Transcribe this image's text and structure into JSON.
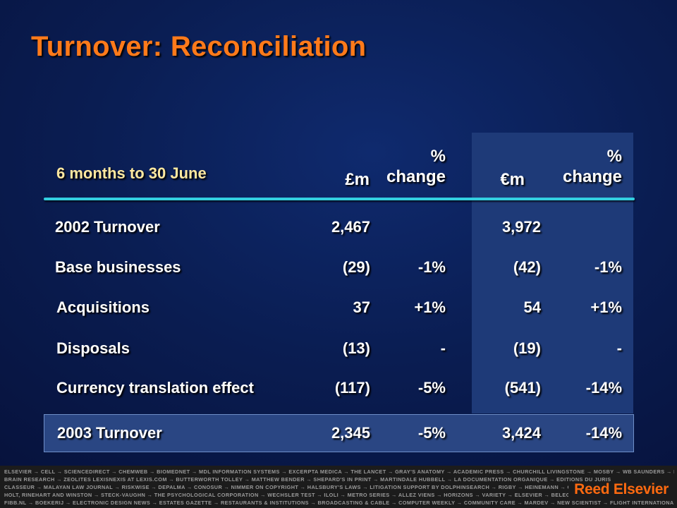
{
  "title": "Turnover: Reconciliation",
  "table": {
    "period_label": "6 months to 30 June",
    "columns": [
      {
        "unit": "£m"
      },
      {
        "pct": "%",
        "change": "change"
      },
      {
        "unit": "€m"
      },
      {
        "pct": "%",
        "change": "change"
      }
    ],
    "rows": [
      {
        "label": "2002 Turnover",
        "gbp": "2,467",
        "gbp_change": "",
        "eur": "3,972",
        "eur_change": ""
      },
      {
        "label": "Base businesses",
        "gbp": "(29)",
        "gbp_change": "-1%",
        "eur": "(42)",
        "eur_change": "-1%"
      },
      {
        "label": "Acquisitions",
        "gbp": "37",
        "gbp_change": "+1%",
        "eur": "54",
        "eur_change": "+1%"
      },
      {
        "label": "Disposals",
        "gbp": "(13)",
        "gbp_change": "-",
        "eur": "(19)",
        "eur_change": "-"
      },
      {
        "label": "Currency translation effect",
        "gbp": "(117)",
        "gbp_change": "-5%",
        "eur": "(541)",
        "eur_change": "-14%"
      }
    ],
    "total": {
      "label": "2003 Turnover",
      "gbp": "2,345",
      "gbp_change": "-5%",
      "eur": "3,424",
      "eur_change": "-14%"
    }
  },
  "footer": {
    "lines": [
      "ELSEVIER → CELL → SCIENCEDIRECT → CHEMWEB → BIOMEDNET → MDL INFORMATION SYSTEMS → EXCERPTA MEDICA → THE LANCET → GRAY'S ANATOMY → ACADEMIC PRESS → CHURCHILL LIVINGSTONE → MOSBY → WB SAUNDERS → MD CONSULT",
      "BRAIN RESEARCH → ZEOLITES LEXISNEXIS   AT LEXIS.COM → BUTTERWORTH TOLLEY → MATTHEW BENDER → SHEPARD'S  IN PRINT → MARTINDALE HUBBELL  → LA DOCUMENTATION ORGANIQUE → EDITIONS DU JURIS",
      "CLASSEUR → MALAYAN LAW JOURNAL → RISKWISE → DEPALMA → CONOSUR → NIMMER ON COPYRIGHT → HALSBURY'S LAWS → LITIGATION SUPPORT BY DOLPHINSEARCH → RIGBY → HEINEMANN → GINN → GREENWOOD",
      "HOLT, RINEHART AND WINSTON → STECK-VAUGHN → THE PSYCHOLOGICAL CORPORATION → WECHSLER TEST → ILOLI → METRO SERIES → ALLEZ VIENS → HORIZONS → VARIETY → ELSEVIER → BELEGGERS BELANGEN",
      "FIBB.NL → BOEKERIJ → ELECTRONIC DESIGN NEWS → ESTATES GAZETTE → RESTAURANTS & INSTITUTIONS → BROADCASTING & CABLE → COMPUTER WEEKLY → COMMUNITY CARE → MARDEV → NEW SCIENTIST → FLIGHT INTERNATIONAL"
    ],
    "logo_text": "Reed Elsevier"
  },
  "colors": {
    "title": "#ff7a1a",
    "period_label": "#ffe8a0",
    "rule": "#33cfe0",
    "euro_panel": "#1e3a78",
    "total_box": "#2a4683",
    "logo": "#ff6a10"
  }
}
